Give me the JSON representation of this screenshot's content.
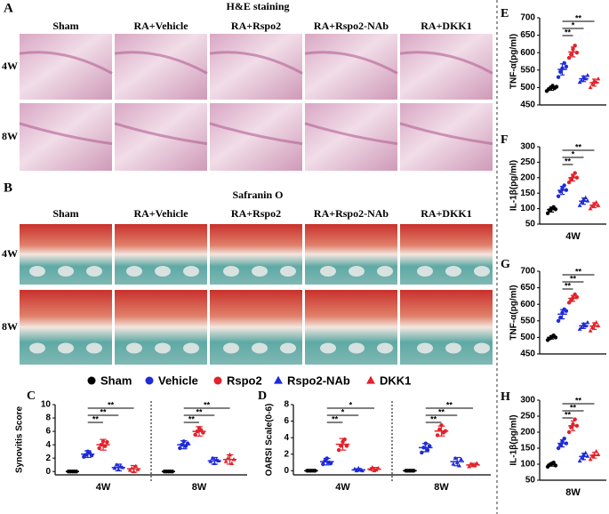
{
  "panels": [
    {
      "letter": "A",
      "title": "H&E staining",
      "columns": [
        "Sham",
        "RA+Vehicle",
        "RA+Rspo2",
        "RA+Rspo2-NAb",
        "RA+DKK1"
      ],
      "rows": [
        "4W",
        "8W"
      ]
    },
    {
      "letter": "B",
      "title": "Safranin O",
      "columns": [
        "Sham",
        "RA+Vehicle",
        "RA+Rspo2",
        "RA+Rspo2-NAb",
        "RA+DKK1"
      ],
      "rows": [
        "4W",
        "8W"
      ]
    }
  ],
  "legend": [
    {
      "name": "Sham",
      "color": "#000000",
      "marker": "circle"
    },
    {
      "name": "Vehicle",
      "color": "#1f2bd6",
      "marker": "circle"
    },
    {
      "name": "Rspo2",
      "color": "#e3222b",
      "marker": "circle"
    },
    {
      "name": "Rspo2-NAb",
      "color": "#1f2bd6",
      "marker": "triangle"
    },
    {
      "name": "DKK1",
      "color": "#e3222b",
      "marker": "triangle"
    }
  ],
  "chart_data": [
    {
      "type": "dot",
      "letter": "C",
      "ylabel": "Synovitis Score",
      "categories": [
        "4W",
        "8W"
      ],
      "ylim": [
        -0.5,
        10
      ],
      "yticks": [
        0,
        2,
        4,
        6,
        8,
        10
      ],
      "series": [
        {
          "color": "#000000",
          "marker": "circle",
          "values": [
            [
              0,
              0,
              0,
              0,
              0
            ],
            [
              0,
              0,
              0,
              0,
              0
            ]
          ],
          "mean": [
            0,
            0
          ],
          "sd": [
            0,
            0
          ]
        },
        {
          "color": "#1f2bd6",
          "marker": "circle",
          "values": [
            [
              2.2,
              2.5,
              3,
              2.8,
              2.4
            ],
            [
              3.5,
              4,
              4.5,
              3.8,
              4.2
            ]
          ],
          "mean": [
            2.6,
            4
          ],
          "sd": [
            0.5,
            0.6
          ]
        },
        {
          "color": "#e3222b",
          "marker": "circle",
          "values": [
            [
              3.5,
              4,
              4.5,
              3.8,
              4.4
            ],
            [
              5.5,
              6,
              6.5,
              6.2,
              5.8
            ]
          ],
          "mean": [
            4,
            6
          ],
          "sd": [
            0.8,
            0.7
          ]
        },
        {
          "color": "#1f2bd6",
          "marker": "triangle",
          "values": [
            [
              0.5,
              1,
              0.3,
              0.8,
              0.6
            ],
            [
              1.5,
              2,
              1.2,
              1.8,
              1.6
            ]
          ],
          "mean": [
            0.6,
            1.6
          ],
          "sd": [
            0.5,
            0.5
          ]
        },
        {
          "color": "#e3222b",
          "marker": "triangle",
          "values": [
            [
              0.2,
              0.5,
              0,
              0.8,
              0.3
            ],
            [
              1.5,
              2,
              2.5,
              1.2,
              1.8
            ]
          ],
          "mean": [
            0.4,
            1.8
          ],
          "sd": [
            0.5,
            0.7
          ]
        }
      ],
      "brackets": [
        {
          "category": 0,
          "from": 1,
          "to": 2,
          "label": "**"
        },
        {
          "category": 0,
          "from": 1,
          "to": 3,
          "label": "**"
        },
        {
          "category": 0,
          "from": 1,
          "to": 4,
          "label": "**"
        },
        {
          "category": 1,
          "from": 1,
          "to": 2,
          "label": "**"
        },
        {
          "category": 1,
          "from": 1,
          "to": 3,
          "label": "**"
        },
        {
          "category": 1,
          "from": 1,
          "to": 4,
          "label": "**"
        }
      ]
    },
    {
      "type": "dot",
      "letter": "D",
      "ylabel": "OARSI Scale(0-6)",
      "categories": [
        "4W",
        "8W"
      ],
      "ylim": [
        -0.5,
        8
      ],
      "yticks": [
        0,
        2,
        4,
        6,
        8
      ],
      "series": [
        {
          "color": "#000000",
          "marker": "circle",
          "values": [
            [
              0,
              0,
              0,
              0,
              0
            ],
            [
              0,
              0,
              0,
              0,
              0
            ]
          ],
          "mean": [
            0,
            0
          ],
          "sd": [
            0,
            0
          ]
        },
        {
          "color": "#1f2bd6",
          "marker": "circle",
          "values": [
            [
              0.8,
              1.2,
              1.5,
              1,
              0.9
            ],
            [
              2.2,
              2.8,
              3.3,
              2.5,
              3
            ]
          ],
          "mean": [
            1.1,
            2.8
          ],
          "sd": [
            0.4,
            0.5
          ]
        },
        {
          "color": "#e3222b",
          "marker": "circle",
          "values": [
            [
              2.5,
              3,
              3.5,
              3.8,
              3
            ],
            [
              4.3,
              5,
              5.5,
              4.6,
              4.8
            ]
          ],
          "mean": [
            3.2,
            4.8
          ],
          "sd": [
            0.7,
            0.6
          ]
        },
        {
          "color": "#1f2bd6",
          "marker": "triangle",
          "values": [
            [
              0.2,
              0,
              0.3,
              0.1,
              0
            ],
            [
              0.8,
              1.5,
              1,
              0.6,
              1.4
            ]
          ],
          "mean": [
            0.1,
            1.1
          ],
          "sd": [
            0.15,
            0.5
          ]
        },
        {
          "color": "#e3222b",
          "marker": "triangle",
          "values": [
            [
              0.2,
              0.4,
              0,
              0.1,
              0.3
            ],
            [
              0.5,
              0.8,
              0.7,
              0.6,
              0.9
            ]
          ],
          "mean": [
            0.2,
            0.7
          ],
          "sd": [
            0.2,
            0.2
          ]
        }
      ],
      "brackets": [
        {
          "category": 0,
          "from": 1,
          "to": 2,
          "label": "**"
        },
        {
          "category": 0,
          "from": 1,
          "to": 3,
          "label": "*"
        },
        {
          "category": 0,
          "from": 1,
          "to": 4,
          "label": "*"
        },
        {
          "category": 1,
          "from": 1,
          "to": 2,
          "label": "**"
        },
        {
          "category": 1,
          "from": 1,
          "to": 3,
          "label": "**"
        },
        {
          "category": 1,
          "from": 1,
          "to": 4,
          "label": "**"
        }
      ]
    },
    {
      "type": "dot",
      "letter": "E",
      "ylabel": "TNF-α(pg/ml)",
      "categories": [
        null
      ],
      "ylim": [
        450,
        700
      ],
      "yticks": [
        450,
        500,
        550,
        600,
        650,
        700
      ],
      "series": [
        {
          "color": "#000000",
          "marker": "circle",
          "values": [
            [
              490,
              495,
              500,
              505,
              498,
              502
            ]
          ],
          "mean": [
            498
          ],
          "sd": [
            6
          ]
        },
        {
          "color": "#1f2bd6",
          "marker": "circle",
          "values": [
            [
              530,
              545,
              555,
              570,
              560
            ]
          ],
          "mean": [
            552
          ],
          "sd": [
            16
          ]
        },
        {
          "color": "#e3222b",
          "marker": "circle",
          "values": [
            [
              585,
              595,
              610,
              620,
              600
            ]
          ],
          "mean": [
            602
          ],
          "sd": [
            14
          ]
        },
        {
          "color": "#1f2bd6",
          "marker": "triangle",
          "values": [
            [
              515,
              520,
              530,
              525,
              535
            ]
          ],
          "mean": [
            525
          ],
          "sd": [
            8
          ]
        },
        {
          "color": "#e3222b",
          "marker": "triangle",
          "values": [
            [
              500,
              510,
              520,
              515,
              525
            ]
          ],
          "mean": [
            514
          ],
          "sd": [
            10
          ]
        }
      ],
      "brackets": [
        {
          "category": 0,
          "from": 1,
          "to": 2,
          "label": "**"
        },
        {
          "category": 0,
          "from": 1,
          "to": 3,
          "label": "*"
        },
        {
          "category": 0,
          "from": 1,
          "to": 4,
          "label": "**"
        }
      ]
    },
    {
      "type": "dot",
      "letter": "F",
      "ylabel": "IL-1β(pg/ml)",
      "categories": [
        "4W"
      ],
      "ylim": [
        50,
        300
      ],
      "yticks": [
        50,
        100,
        150,
        200,
        250,
        300
      ],
      "series": [
        {
          "color": "#000000",
          "marker": "circle",
          "values": [
            [
              85,
              95,
              100,
              105,
              98
            ]
          ],
          "mean": [
            97
          ],
          "sd": [
            8
          ]
        },
        {
          "color": "#1f2bd6",
          "marker": "circle",
          "values": [
            [
              140,
              155,
              165,
              175,
              160
            ]
          ],
          "mean": [
            159
          ],
          "sd": [
            13
          ]
        },
        {
          "color": "#e3222b",
          "marker": "circle",
          "values": [
            [
              185,
              195,
              205,
              215,
              200
            ]
          ],
          "mean": [
            200
          ],
          "sd": [
            11
          ]
        },
        {
          "color": "#1f2bd6",
          "marker": "triangle",
          "values": [
            [
              110,
              120,
              130,
              135,
              125
            ]
          ],
          "mean": [
            124
          ],
          "sd": [
            10
          ]
        },
        {
          "color": "#e3222b",
          "marker": "triangle",
          "values": [
            [
              100,
              108,
              115,
              120,
              110
            ]
          ],
          "mean": [
            111
          ],
          "sd": [
            8
          ]
        }
      ],
      "brackets": [
        {
          "category": 0,
          "from": 1,
          "to": 2,
          "label": "**"
        },
        {
          "category": 0,
          "from": 1,
          "to": 3,
          "label": "*"
        },
        {
          "category": 0,
          "from": 1,
          "to": 4,
          "label": "**"
        }
      ]
    },
    {
      "type": "dot",
      "letter": "G",
      "ylabel": "TNF-α(pg/ml)",
      "categories": [
        null
      ],
      "ylim": [
        450,
        700
      ],
      "yticks": [
        450,
        500,
        550,
        600,
        650,
        700
      ],
      "series": [
        {
          "color": "#000000",
          "marker": "circle",
          "values": [
            [
              492,
              497,
              502,
              506,
              500
            ]
          ],
          "mean": [
            500
          ],
          "sd": [
            5
          ]
        },
        {
          "color": "#1f2bd6",
          "marker": "circle",
          "values": [
            [
              550,
              560,
              575,
              585,
              580
            ]
          ],
          "mean": [
            570
          ],
          "sd": [
            14
          ]
        },
        {
          "color": "#e3222b",
          "marker": "circle",
          "values": [
            [
              605,
              612,
              620,
              630,
              622
            ]
          ],
          "mean": [
            618
          ],
          "sd": [
            9
          ]
        },
        {
          "color": "#1f2bd6",
          "marker": "triangle",
          "values": [
            [
              525,
              530,
              540,
              535,
              545
            ]
          ],
          "mean": [
            535
          ],
          "sd": [
            8
          ]
        },
        {
          "color": "#e3222b",
          "marker": "triangle",
          "values": [
            [
              520,
              530,
              540,
              545,
              535
            ]
          ],
          "mean": [
            534
          ],
          "sd": [
            10
          ]
        }
      ],
      "brackets": [
        {
          "category": 0,
          "from": 1,
          "to": 2,
          "label": "**"
        },
        {
          "category": 0,
          "from": 1,
          "to": 3,
          "label": "**"
        },
        {
          "category": 0,
          "from": 1,
          "to": 4,
          "label": "**"
        }
      ]
    },
    {
      "type": "dot",
      "letter": "H",
      "ylabel": "IL-1β(pg/ml)",
      "categories": [
        "8W"
      ],
      "ylim": [
        50,
        300
      ],
      "yticks": [
        50,
        100,
        150,
        200,
        250,
        300
      ],
      "series": [
        {
          "color": "#000000",
          "marker": "circle",
          "values": [
            [
              92,
              98,
              102,
              105,
              96
            ]
          ],
          "mean": [
            99
          ],
          "sd": [
            5
          ]
        },
        {
          "color": "#1f2bd6",
          "marker": "circle",
          "values": [
            [
              150,
              160,
              170,
              180,
              165
            ]
          ],
          "mean": [
            165
          ],
          "sd": [
            11
          ]
        },
        {
          "color": "#e3222b",
          "marker": "circle",
          "values": [
            [
              200,
              215,
              225,
              240,
              220
            ]
          ],
          "mean": [
            220
          ],
          "sd": [
            15
          ]
        },
        {
          "color": "#1f2bd6",
          "marker": "triangle",
          "values": [
            [
              110,
              120,
              130,
              135,
              125
            ]
          ],
          "mean": [
            124
          ],
          "sd": [
            10
          ]
        },
        {
          "color": "#e3222b",
          "marker": "triangle",
          "values": [
            [
              115,
              125,
              130,
              140,
              130
            ]
          ],
          "mean": [
            128
          ],
          "sd": [
            9
          ]
        }
      ],
      "brackets": [
        {
          "category": 0,
          "from": 1,
          "to": 2,
          "label": "**"
        },
        {
          "category": 0,
          "from": 1,
          "to": 3,
          "label": "**"
        },
        {
          "category": 0,
          "from": 1,
          "to": 4,
          "label": "**"
        }
      ]
    }
  ]
}
